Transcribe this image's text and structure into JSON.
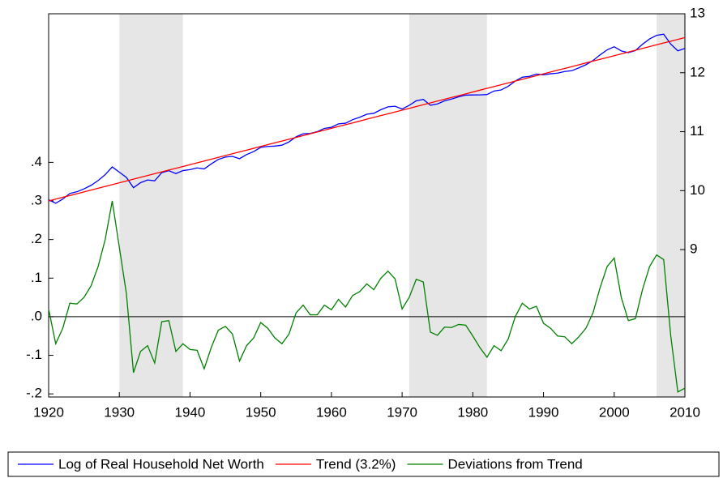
{
  "chart_data": {
    "type": "line",
    "x": [
      1920,
      1921,
      1922,
      1923,
      1924,
      1925,
      1926,
      1927,
      1928,
      1929,
      1930,
      1931,
      1932,
      1933,
      1934,
      1935,
      1936,
      1937,
      1938,
      1939,
      1940,
      1941,
      1942,
      1943,
      1944,
      1945,
      1946,
      1947,
      1948,
      1949,
      1950,
      1951,
      1952,
      1953,
      1954,
      1955,
      1956,
      1957,
      1958,
      1959,
      1960,
      1961,
      1962,
      1963,
      1964,
      1965,
      1966,
      1967,
      1968,
      1969,
      1970,
      1971,
      1972,
      1973,
      1974,
      1975,
      1976,
      1977,
      1978,
      1979,
      1980,
      1981,
      1982,
      1983,
      1984,
      1985,
      1986,
      1987,
      1988,
      1989,
      1990,
      1991,
      1992,
      1993,
      1994,
      1995,
      1996,
      1997,
      1998,
      1999,
      2000,
      2001,
      2002,
      2003,
      2004,
      2005,
      2006,
      2007,
      2008,
      2009,
      2010
    ],
    "series": [
      {
        "name": "Log of Real Household Net Worth",
        "color": "#0000ff",
        "axis": "y2",
        "values": [
          9.845,
          9.786,
          9.857,
          9.952,
          9.981,
          10.029,
          10.09,
          10.171,
          10.271,
          10.402,
          10.313,
          10.224,
          10.05,
          10.135,
          10.181,
          10.167,
          10.305,
          10.339,
          10.289,
          10.34,
          10.356,
          10.385,
          10.368,
          10.453,
          10.529,
          10.57,
          10.581,
          10.542,
          10.612,
          10.663,
          10.734,
          10.75,
          10.756,
          10.771,
          10.827,
          10.913,
          10.964,
          10.97,
          11.0,
          11.056,
          11.075,
          11.133,
          11.144,
          11.204,
          11.245,
          11.296,
          11.312,
          11.373,
          11.421,
          11.432,
          11.385,
          11.446,
          11.524,
          11.547,
          11.448,
          11.471,
          11.523,
          11.553,
          11.591,
          11.62,
          11.623,
          11.624,
          11.63,
          11.69,
          11.708,
          11.769,
          11.858,
          11.924,
          11.939,
          11.977,
          11.964,
          11.982,
          11.993,
          12.021,
          12.034,
          12.083,
          12.136,
          12.207,
          12.302,
          12.388,
          12.441,
          12.37,
          12.341,
          12.376,
          12.482,
          12.573,
          12.634,
          12.653,
          12.485,
          12.371,
          12.412
        ]
      },
      {
        "name": "Trend (3.2%)",
        "color": "#ff0000",
        "axis": "y2",
        "values": [
          9.825,
          9.856,
          9.887,
          9.917,
          9.948,
          9.979,
          10.01,
          10.041,
          10.071,
          10.102,
          10.133,
          10.164,
          10.195,
          10.225,
          10.256,
          10.287,
          10.318,
          10.349,
          10.379,
          10.41,
          10.441,
          10.472,
          10.503,
          10.533,
          10.564,
          10.595,
          10.626,
          10.657,
          10.687,
          10.718,
          10.749,
          10.78,
          10.811,
          10.841,
          10.872,
          10.903,
          10.934,
          10.965,
          10.995,
          11.026,
          11.057,
          11.088,
          11.119,
          11.149,
          11.18,
          11.211,
          11.242,
          11.273,
          11.303,
          11.334,
          11.365,
          11.396,
          11.427,
          11.457,
          11.488,
          11.519,
          11.55,
          11.581,
          11.611,
          11.642,
          11.673,
          11.704,
          11.735,
          11.765,
          11.796,
          11.827,
          11.858,
          11.889,
          11.919,
          11.95,
          11.981,
          12.012,
          12.043,
          12.073,
          12.104,
          12.135,
          12.166,
          12.197,
          12.227,
          12.258,
          12.289,
          12.32,
          12.351,
          12.381,
          12.412,
          12.443,
          12.474,
          12.505,
          12.535,
          12.566,
          12.597
        ]
      },
      {
        "name": "Deviations from Trend",
        "color": "#008000",
        "values": [
          0.02,
          -0.07,
          -0.03,
          0.035,
          0.033,
          0.05,
          0.08,
          0.13,
          0.2,
          0.3,
          0.18,
          0.06,
          -0.145,
          -0.09,
          -0.075,
          -0.12,
          -0.013,
          -0.01,
          -0.09,
          -0.07,
          -0.085,
          -0.087,
          -0.135,
          -0.08,
          -0.035,
          -0.025,
          -0.045,
          -0.115,
          -0.075,
          -0.055,
          -0.015,
          -0.03,
          -0.055,
          -0.07,
          -0.045,
          0.01,
          0.03,
          0.005,
          0.005,
          0.03,
          0.018,
          0.045,
          0.025,
          0.055,
          0.065,
          0.085,
          0.07,
          0.1,
          0.118,
          0.098,
          0.02,
          0.05,
          0.097,
          0.09,
          -0.04,
          -0.048,
          -0.027,
          -0.028,
          -0.02,
          -0.022,
          -0.05,
          -0.08,
          -0.105,
          -0.075,
          -0.088,
          -0.058,
          0,
          0.035,
          0.02,
          0.027,
          -0.017,
          -0.03,
          -0.05,
          -0.052,
          -0.07,
          -0.052,
          -0.03,
          0.01,
          0.075,
          0.13,
          0.152,
          0.05,
          -0.01,
          -0.005,
          0.07,
          0.13,
          0.16,
          0.148,
          -0.05,
          -0.195,
          -0.185
        ]
      }
    ],
    "shaded_ranges": [
      [
        1930,
        1939
      ],
      [
        1971,
        1982
      ],
      [
        2006,
        2010
      ]
    ],
    "shade_color": "#e6e6e6",
    "xlim": [
      1920,
      2010
    ],
    "xticks": [
      1920,
      1930,
      1940,
      1950,
      1960,
      1970,
      1980,
      1990,
      2000,
      2010
    ],
    "ylim": [
      -0.208,
      0.785
    ],
    "yticks": [
      {
        "value": -0.2,
        "label": "-.2"
      },
      {
        "value": -0.1,
        "label": "-.1"
      },
      {
        "value": 0,
        "label": ".0"
      },
      {
        "value": 0.1,
        "label": ".1"
      },
      {
        "value": 0.2,
        "label": ".2"
      },
      {
        "value": 0.3,
        "label": ".3"
      },
      {
        "value": 0.4,
        "label": ".4"
      }
    ],
    "y2lim": [
      6.5,
      13
    ],
    "y2ticks": [
      9,
      10,
      11,
      12,
      13
    ],
    "zero_line": true,
    "legend": "bottom"
  }
}
